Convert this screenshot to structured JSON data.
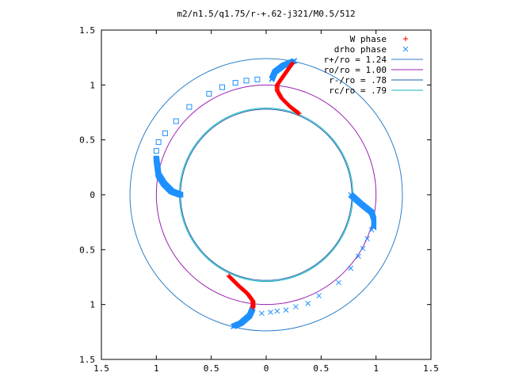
{
  "chart_data": {
    "type": "scatter",
    "title": "m2/n1.5/q1.75/r-+.62-j321/M0.5/512",
    "xlim": [
      -1.5,
      1.5
    ],
    "ylim": [
      -1.5,
      1.5
    ],
    "xticks": [
      -1.5,
      -1,
      -0.5,
      0,
      0.5,
      1,
      1.5
    ],
    "yticks": [
      -1.5,
      -1,
      -0.5,
      0,
      0.5,
      1,
      1.5
    ],
    "xtick_labels": [
      "1.5",
      "1",
      "0.5",
      "0",
      "0.5",
      "1",
      "1.5"
    ],
    "ytick_labels": [
      "1.5",
      "1",
      "0.5",
      "0",
      "0.5",
      "1",
      "1.5"
    ],
    "grid": false,
    "legend_position": "top-right",
    "series": [
      {
        "name": "W phase",
        "marker": "plus",
        "color": "#ff0000",
        "branches": [
          [
            [
              0.24,
              1.2
            ],
            [
              0.17,
              1.1
            ],
            [
              0.1,
              1.0
            ],
            [
              0.1,
              0.95
            ],
            [
              0.14,
              0.88
            ],
            [
              0.22,
              0.8
            ],
            [
              0.3,
              0.74
            ]
          ],
          [
            [
              -0.34,
              -0.74
            ],
            [
              -0.25,
              -0.83
            ],
            [
              -0.17,
              -0.9
            ],
            [
              -0.12,
              -0.97
            ],
            [
              -0.12,
              -1.03
            ]
          ]
        ]
      },
      {
        "name": "drho phase",
        "marker": "cross",
        "color": "#1e90ff",
        "branches": [
          [
            [
              0.05,
              1.05
            ],
            [
              0.08,
              1.12
            ],
            [
              0.16,
              1.18
            ],
            [
              0.26,
              1.22
            ]
          ],
          [
            [
              0.77,
              0.0
            ],
            [
              0.86,
              -0.08
            ],
            [
              0.96,
              -0.16
            ],
            [
              0.98,
              -0.22
            ],
            [
              0.98,
              -0.3
            ]
          ],
          [
            [
              -0.12,
              -1.03
            ],
            [
              -0.15,
              -1.1
            ],
            [
              -0.23,
              -1.17
            ],
            [
              -0.3,
              -1.2
            ]
          ],
          [
            [
              -1.0,
              0.33
            ],
            [
              -0.98,
              0.18
            ],
            [
              -0.93,
              0.1
            ],
            [
              -0.86,
              0.03
            ],
            [
              -0.78,
              0.0
            ]
          ]
        ],
        "sparse": [
          [
            -1.0,
            0.4
          ],
          [
            -0.98,
            0.48
          ],
          [
            -0.92,
            0.56
          ],
          [
            -0.82,
            0.67
          ],
          [
            -0.7,
            0.8
          ],
          [
            -0.52,
            0.92
          ],
          [
            -0.4,
            0.98
          ],
          [
            -0.28,
            1.02
          ],
          [
            -0.18,
            1.04
          ],
          [
            -0.08,
            1.05
          ],
          [
            0.96,
            -0.32
          ],
          [
            0.92,
            -0.4
          ],
          [
            0.88,
            -0.49
          ],
          [
            0.84,
            -0.56
          ],
          [
            0.77,
            -0.67
          ],
          [
            0.66,
            -0.8
          ],
          [
            0.48,
            -0.92
          ],
          [
            0.38,
            -0.99
          ],
          [
            0.27,
            -1.02
          ],
          [
            0.18,
            -1.05
          ],
          [
            0.1,
            -1.06
          ],
          [
            0.04,
            -1.07
          ],
          [
            -0.04,
            -1.08
          ]
        ]
      }
    ],
    "circles": [
      {
        "name": "r+/ro = 1.24",
        "radius": 1.24,
        "color": "#2f7fc8"
      },
      {
        "name": "ro/ro = 1.00",
        "radius": 1.0,
        "color": "#9b1fb0"
      },
      {
        "name": "r-/ro = .78",
        "radius": 0.78,
        "color": "#1f5fa6"
      },
      {
        "name": "rc/ro = .79",
        "radius": 0.79,
        "color": "#10b5c0"
      }
    ]
  }
}
